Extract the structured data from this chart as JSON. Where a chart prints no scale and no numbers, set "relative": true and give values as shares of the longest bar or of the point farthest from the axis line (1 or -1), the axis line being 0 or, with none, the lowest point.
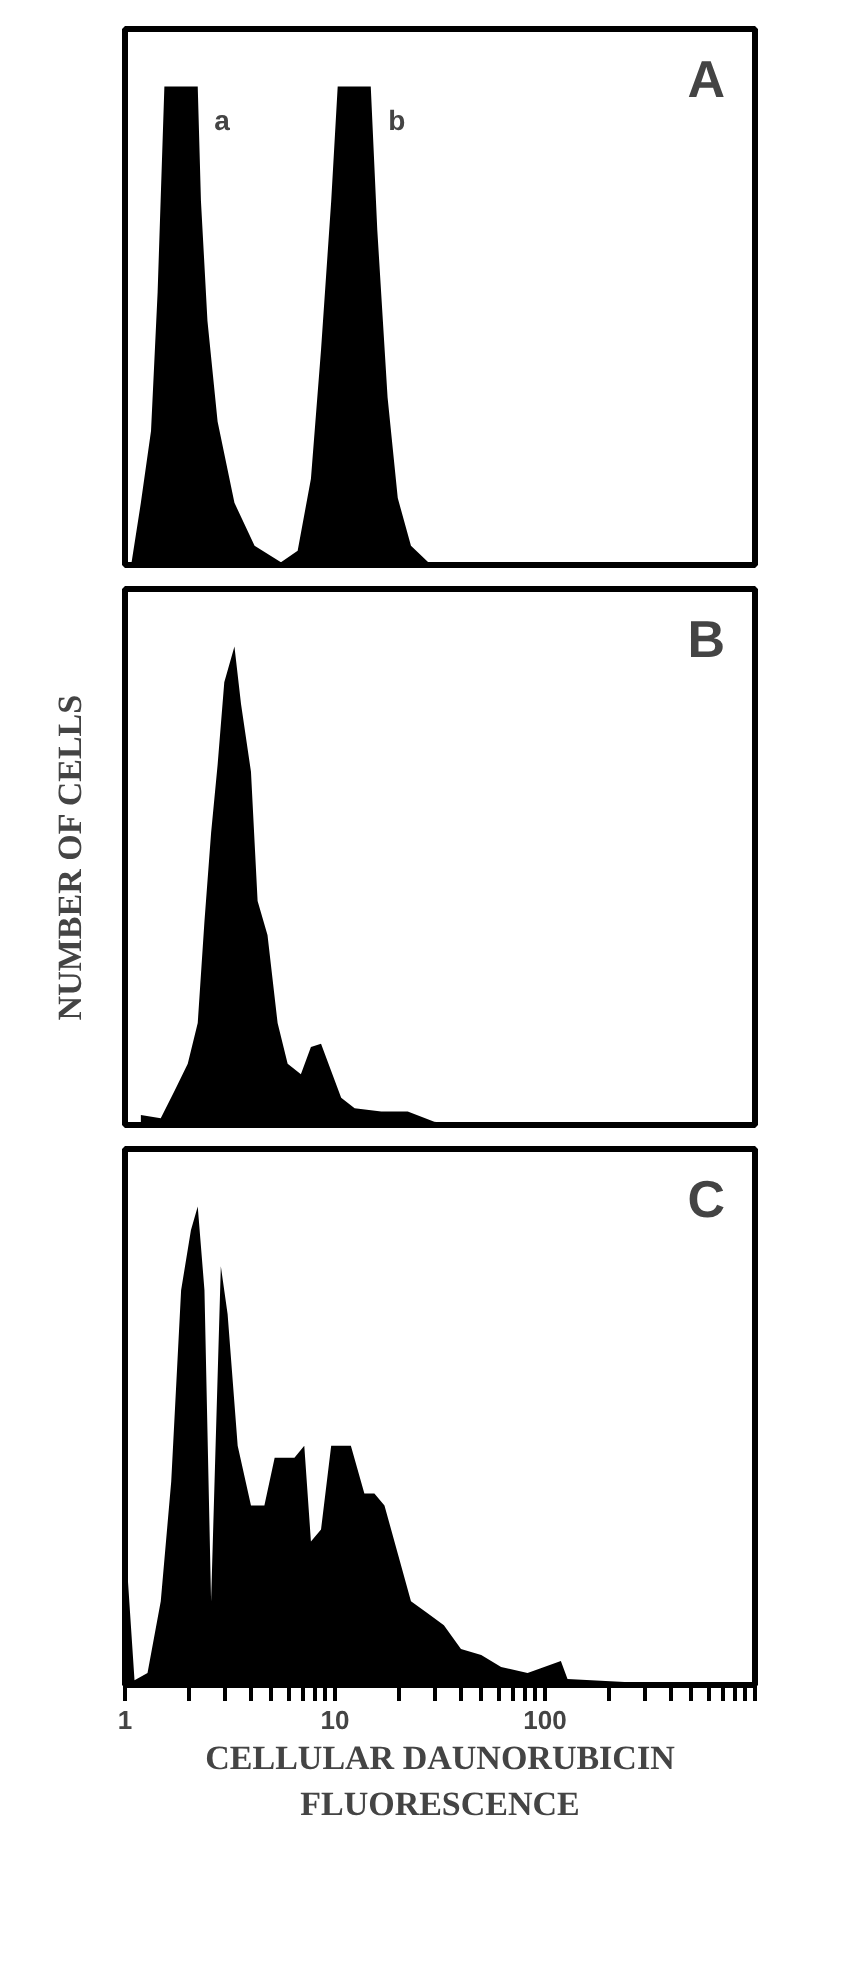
{
  "chart_data": [
    {
      "type": "area",
      "title": "A",
      "relative": true,
      "log": "x",
      "xlim": [
        1,
        1000
      ],
      "tick_labels": false,
      "x": [
        1.07,
        1.19,
        1.33,
        1.43,
        1.54,
        2.22,
        2.3,
        2.47,
        2.76,
        3.32,
        4.14,
        5.53,
        6.64,
        7.68,
        8.58,
        9.59,
        10.3,
        14.8,
        15.9,
        17.8,
        19.9,
        23.0,
        28.7,
        1000
      ],
      "values": [
        0,
        0.13,
        0.28,
        0.57,
        1,
        1,
        0.76,
        0.51,
        0.3,
        0.13,
        0.04,
        0.006,
        0.03,
        0.18,
        0.45,
        0.76,
        1,
        1,
        0.7,
        0.35,
        0.14,
        0.04,
        0,
        0
      ],
      "color": "#000000",
      "annotations": [
        {
          "text": "a",
          "x": 2.9,
          "y": 0.93
        },
        {
          "text": "b",
          "x": 19.7,
          "y": 0.93
        }
      ]
    },
    {
      "type": "area",
      "title": "B",
      "ylabel": "NUMBER OF CELLS",
      "relative": true,
      "log": "x",
      "xlim": [
        1,
        1000
      ],
      "tick_labels": false,
      "x": [
        1.19,
        1.48,
        1.72,
        1.99,
        2.22,
        2.39,
        2.57,
        2.76,
        2.97,
        3.32,
        3.57,
        3.98,
        4.28,
        4.77,
        5.33,
        5.95,
        6.88,
        7.68,
        8.58,
        9.59,
        10.7,
        12.4,
        16.6,
        22.2,
        29.7,
        39.8,
        1000
      ],
      "values": [
        0.021,
        0.014,
        0.071,
        0.128,
        0.213,
        0.426,
        0.61,
        0.752,
        0.925,
        1,
        0.879,
        0.738,
        0.468,
        0.397,
        0.213,
        0.128,
        0.106,
        0.163,
        0.17,
        0.113,
        0.057,
        0.035,
        0.028,
        0.028,
        0.007,
        0,
        0
      ],
      "color": "#000000"
    },
    {
      "type": "area",
      "title": "C",
      "xlabel": "CELLULAR DAUNORUBICIN FLUORESCENCE",
      "relative": true,
      "log": "x",
      "xlim": [
        1,
        1000
      ],
      "tick_labels": "x",
      "xticks": [
        1,
        {
          "value": 2,
          "label": null
        },
        {
          "value": 3,
          "label": null
        },
        {
          "value": 4,
          "label": null
        },
        {
          "value": 5,
          "label": null
        },
        {
          "value": 6,
          "label": null
        },
        {
          "value": 7,
          "label": null
        },
        {
          "value": 8,
          "label": null
        },
        {
          "value": 9,
          "label": null
        },
        10,
        {
          "value": 20,
          "label": null
        },
        {
          "value": 30,
          "label": null
        },
        {
          "value": 40,
          "label": null
        },
        {
          "value": 50,
          "label": null
        },
        {
          "value": 60,
          "label": null
        },
        {
          "value": 70,
          "label": null
        },
        {
          "value": 80,
          "label": null
        },
        {
          "value": 90,
          "label": null
        },
        100,
        {
          "value": 200,
          "label": null
        },
        {
          "value": 300,
          "label": null
        },
        {
          "value": 400,
          "label": null
        },
        {
          "value": 500,
          "label": null
        },
        {
          "value": 600,
          "label": null
        },
        {
          "value": 700,
          "label": null
        },
        {
          "value": 800,
          "label": null
        },
        {
          "value": 900,
          "label": null
        },
        {
          "value": 1000,
          "label": null
        }
      ],
      "x": [
        1.03,
        1.11,
        1.28,
        1.48,
        1.66,
        1.85,
        2.06,
        2.22,
        2.39,
        2.57,
        2.7,
        2.86,
        3.08,
        3.44,
        3.98,
        4.61,
        5.16,
        6.41,
        7.14,
        7.68,
        8.58,
        9.59,
        11.9,
        13.8,
        15.4,
        17.2,
        19.9,
        23.0,
        27.6,
        33.0,
        39.8,
        49.7,
        61.8,
        82.6,
        119,
        128,
        266,
        476,
        1000
      ],
      "values": [
        0.225,
        0.01,
        0.025,
        0.175,
        0.425,
        0.825,
        0.95,
        1,
        0.825,
        0.175,
        0.5,
        0.875,
        0.775,
        0.5,
        0.375,
        0.375,
        0.475,
        0.475,
        0.5,
        0.3,
        0.325,
        0.5,
        0.5,
        0.4,
        0.4,
        0.375,
        0.275,
        0.175,
        0.15,
        0.125,
        0.075,
        0.0625,
        0.0375,
        0.025,
        0.05,
        0.0125,
        0.005,
        0.005,
        0.005
      ],
      "color": "#000000"
    }
  ]
}
